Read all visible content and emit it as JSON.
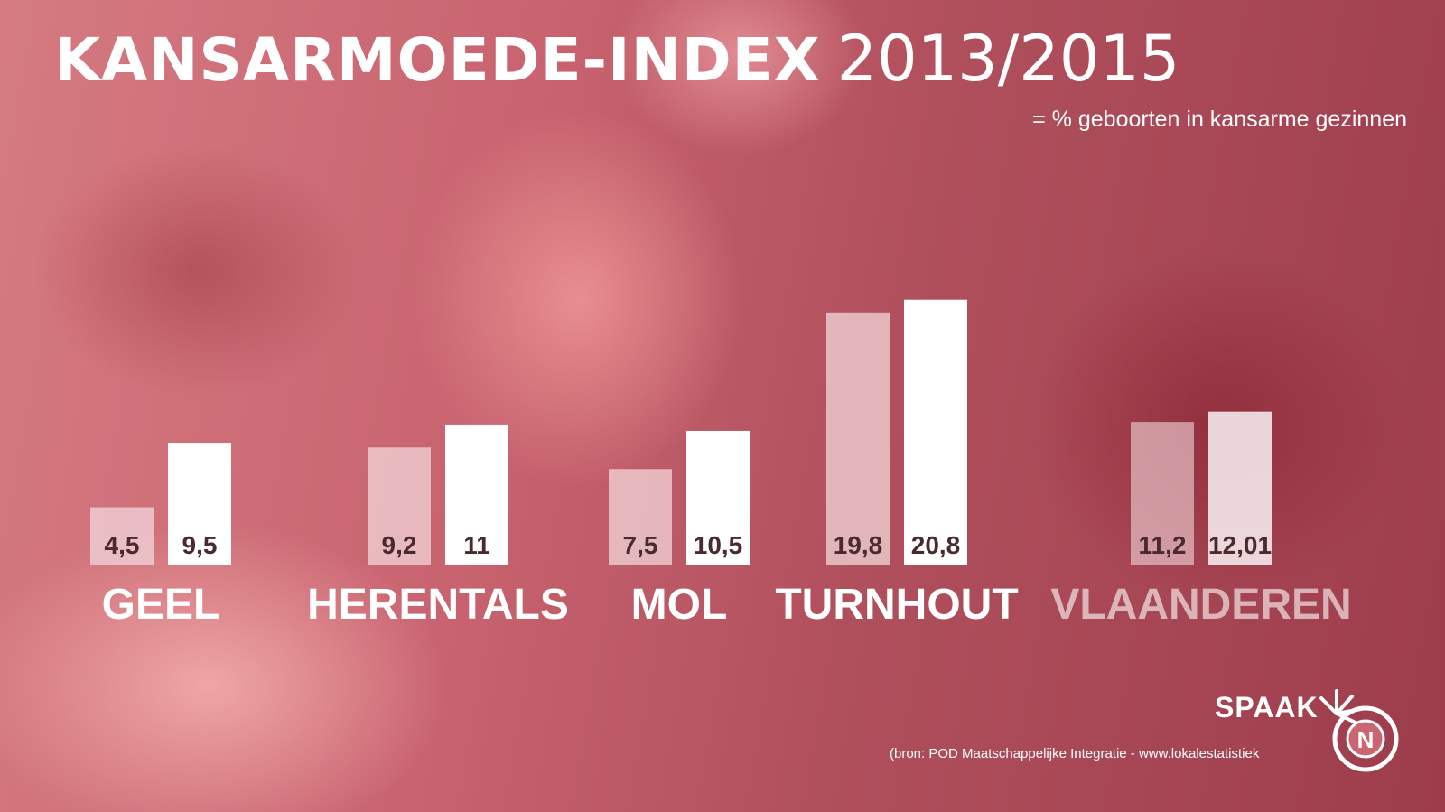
{
  "header": {
    "title": "KANSARMOEDE-INDEX",
    "years": "2013/2015",
    "subtitle": "= % geboorten in kansarme gezinnen"
  },
  "footer": {
    "logo_text": "SPAAK",
    "source": "(bron: POD Maatschappelijke Integratie - www.lokalestatistiek"
  },
  "colors": {
    "bar_2013": "#f2d7da",
    "bar_2015": "#ffffff",
    "label_text": "#4a2a2e",
    "accent": "#b04f5a"
  },
  "chart_data": {
    "type": "bar",
    "title": "KANSARMOEDE-INDEX 2013/2015",
    "subtitle": "= % geboorten in kansarme gezinnen",
    "categories": [
      "GEEL",
      "HERENTALS",
      "MOL",
      "TURNHOUT",
      "VLAANDEREN"
    ],
    "series": [
      {
        "values": [
          4.5,
          9.2,
          7.5,
          19.8,
          11.2
        ],
        "labels": [
          "4,5",
          "9,2",
          "7,5",
          "19,8",
          "11,2"
        ]
      },
      {
        "values": [
          9.5,
          11,
          10.5,
          20.8,
          12.01
        ],
        "labels": [
          "9,5",
          "11",
          "10,5",
          "20,8",
          "12,01"
        ]
      }
    ],
    "grid": false,
    "legend": "none"
  }
}
